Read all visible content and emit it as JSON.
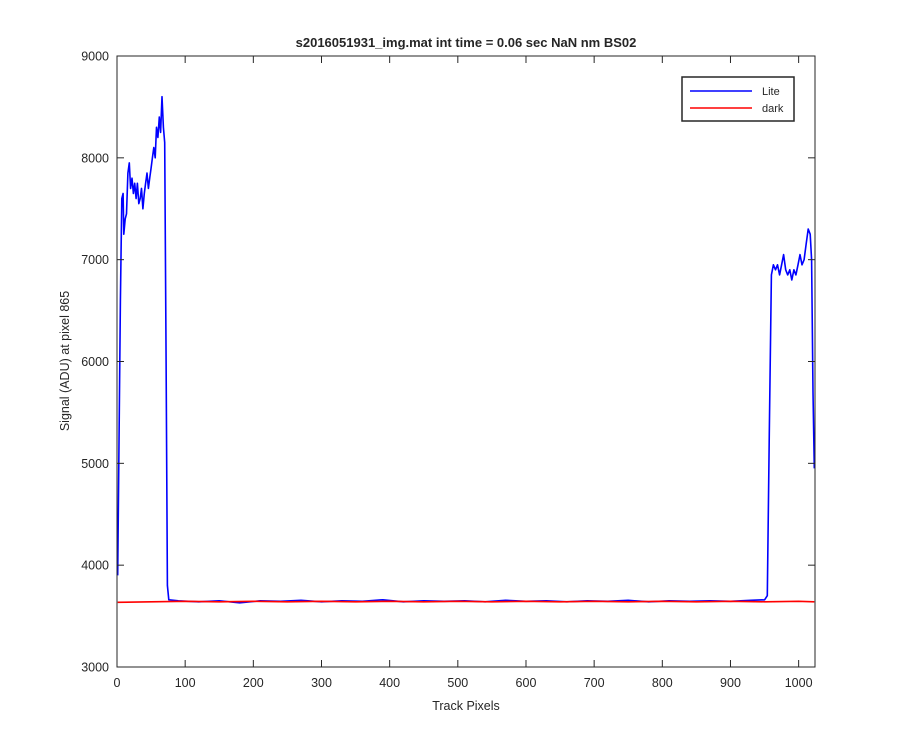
{
  "chart_data": {
    "type": "line",
    "title": "s2016051931_img.mat int time = 0.06 sec  NaN nm BS02",
    "xlabel": "Track Pixels",
    "ylabel": "Signal (ADU) at pixel 865",
    "xlim": [
      0,
      1024
    ],
    "ylim": [
      3000,
      9000
    ],
    "xticks": [
      0,
      100,
      200,
      300,
      400,
      500,
      600,
      700,
      800,
      900,
      1000
    ],
    "yticks": [
      3000,
      4000,
      5000,
      6000,
      7000,
      8000,
      9000
    ],
    "grid": false,
    "legend_position": "top-right",
    "series": [
      {
        "name": "Lite",
        "color": "#0000ff",
        "points": [
          [
            1,
            3900
          ],
          [
            3,
            5200
          ],
          [
            5,
            6600
          ],
          [
            7,
            7600
          ],
          [
            9,
            7650
          ],
          [
            10,
            7250
          ],
          [
            12,
            7400
          ],
          [
            14,
            7450
          ],
          [
            16,
            7850
          ],
          [
            18,
            7950
          ],
          [
            20,
            7700
          ],
          [
            22,
            7800
          ],
          [
            24,
            7650
          ],
          [
            26,
            7750
          ],
          [
            28,
            7600
          ],
          [
            30,
            7750
          ],
          [
            32,
            7550
          ],
          [
            34,
            7600
          ],
          [
            36,
            7700
          ],
          [
            38,
            7500
          ],
          [
            40,
            7650
          ],
          [
            42,
            7750
          ],
          [
            44,
            7850
          ],
          [
            46,
            7700
          ],
          [
            48,
            7800
          ],
          [
            50,
            7900
          ],
          [
            52,
            8000
          ],
          [
            54,
            8100
          ],
          [
            56,
            8000
          ],
          [
            58,
            8300
          ],
          [
            60,
            8200
          ],
          [
            62,
            8400
          ],
          [
            64,
            8250
          ],
          [
            66,
            8600
          ],
          [
            68,
            8300
          ],
          [
            70,
            8150
          ],
          [
            72,
            6000
          ],
          [
            74,
            3800
          ],
          [
            76,
            3660
          ],
          [
            90,
            3650
          ],
          [
            120,
            3640
          ],
          [
            150,
            3650
          ],
          [
            180,
            3630
          ],
          [
            210,
            3650
          ],
          [
            240,
            3645
          ],
          [
            270,
            3655
          ],
          [
            300,
            3640
          ],
          [
            330,
            3650
          ],
          [
            360,
            3645
          ],
          [
            390,
            3660
          ],
          [
            420,
            3640
          ],
          [
            450,
            3650
          ],
          [
            480,
            3645
          ],
          [
            510,
            3650
          ],
          [
            540,
            3640
          ],
          [
            570,
            3655
          ],
          [
            600,
            3645
          ],
          [
            630,
            3650
          ],
          [
            660,
            3640
          ],
          [
            690,
            3650
          ],
          [
            720,
            3645
          ],
          [
            750,
            3655
          ],
          [
            780,
            3640
          ],
          [
            810,
            3650
          ],
          [
            840,
            3645
          ],
          [
            870,
            3650
          ],
          [
            900,
            3645
          ],
          [
            930,
            3655
          ],
          [
            950,
            3660
          ],
          [
            954,
            3700
          ],
          [
            957,
            5300
          ],
          [
            960,
            6850
          ],
          [
            963,
            6950
          ],
          [
            966,
            6900
          ],
          [
            969,
            6950
          ],
          [
            972,
            6850
          ],
          [
            975,
            6950
          ],
          [
            978,
            7050
          ],
          [
            981,
            6900
          ],
          [
            984,
            6850
          ],
          [
            987,
            6900
          ],
          [
            990,
            6800
          ],
          [
            993,
            6900
          ],
          [
            996,
            6850
          ],
          [
            999,
            6950
          ],
          [
            1002,
            7050
          ],
          [
            1005,
            6950
          ],
          [
            1008,
            7000
          ],
          [
            1011,
            7150
          ],
          [
            1014,
            7300
          ],
          [
            1017,
            7250
          ],
          [
            1019,
            7000
          ],
          [
            1021,
            5700
          ],
          [
            1023,
            4950
          ]
        ]
      },
      {
        "name": "dark",
        "color": "#ff0000",
        "points": [
          [
            1,
            3635
          ],
          [
            50,
            3640
          ],
          [
            100,
            3645
          ],
          [
            150,
            3640
          ],
          [
            200,
            3645
          ],
          [
            250,
            3640
          ],
          [
            300,
            3645
          ],
          [
            350,
            3640
          ],
          [
            400,
            3645
          ],
          [
            450,
            3640
          ],
          [
            500,
            3645
          ],
          [
            550,
            3640
          ],
          [
            600,
            3645
          ],
          [
            650,
            3640
          ],
          [
            700,
            3645
          ],
          [
            750,
            3640
          ],
          [
            800,
            3645
          ],
          [
            850,
            3640
          ],
          [
            900,
            3645
          ],
          [
            950,
            3640
          ],
          [
            1000,
            3645
          ],
          [
            1023,
            3640
          ]
        ]
      }
    ]
  }
}
